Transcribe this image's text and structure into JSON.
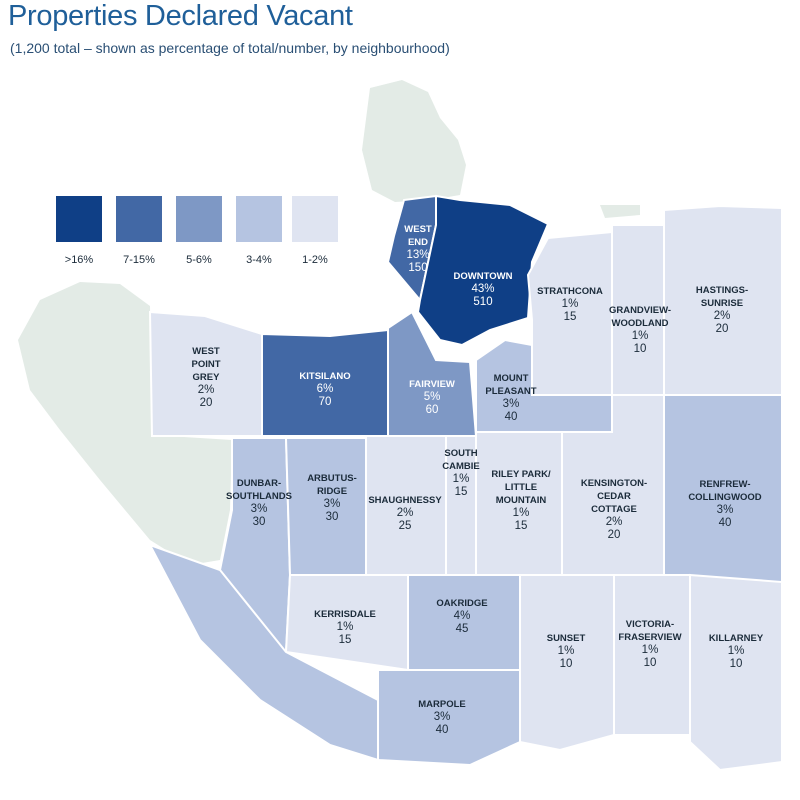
{
  "title": "Properties Declared Vacant",
  "subtitle": "(1,200 total – shown as percentage of total/number, by neighbourhood)",
  "colors": {
    "land": "#e3ebe6",
    "water": "#ffffff",
    "border": "#ffffff",
    "bin_16_plus": "#0f3f86",
    "bin_7_15": "#4268a5",
    "bin_5_6": "#7e98c5",
    "bin_3_4": "#b5c4e1",
    "bin_1_2": "#dfe4f1"
  },
  "legend": [
    {
      "label": ">16%",
      "color": "#0f3f86"
    },
    {
      "label": "7-15%",
      "color": "#4268a5"
    },
    {
      "label": "5-6%",
      "color": "#7e98c5"
    },
    {
      "label": "3-4%",
      "color": "#b5c4e1"
    },
    {
      "label": "1-2%",
      "color": "#dfe4f1"
    }
  ],
  "neighbourhoods": [
    {
      "name": "WEST\nEND",
      "pct": "13%",
      "count": "150"
    },
    {
      "name": "DOWNTOWN",
      "pct": "43%",
      "count": "510"
    },
    {
      "name": "STRATHCONA",
      "pct": "1%",
      "count": "15"
    },
    {
      "name": "GRANDVIEW-\nWOODLAND",
      "pct": "1%",
      "count": "10"
    },
    {
      "name": "HASTINGS-\nSUNRISE",
      "pct": "2%",
      "count": "20"
    },
    {
      "name": "WEST\nPOINT\nGREY",
      "pct": "2%",
      "count": "20"
    },
    {
      "name": "KITSILANO",
      "pct": "6%",
      "count": "70"
    },
    {
      "name": "FAIRVIEW",
      "pct": "5%",
      "count": "60"
    },
    {
      "name": "MOUNT\nPLEASANT",
      "pct": "3%",
      "count": "40"
    },
    {
      "name": "SOUTH\nCAMBIE",
      "pct": "1%",
      "count": "15"
    },
    {
      "name": "DUNBAR-\nSOUTHLANDS",
      "pct": "3%",
      "count": "30"
    },
    {
      "name": "ARBUTUS-\nRIDGE",
      "pct": "3%",
      "count": "30"
    },
    {
      "name": "SHAUGHNESSY",
      "pct": "2%",
      "count": "25"
    },
    {
      "name": "RILEY PARK/\nLITTLE\nMOUNTAIN",
      "pct": "1%",
      "count": "15"
    },
    {
      "name": "KENSINGTON-\nCEDAR\nCOTTAGE",
      "pct": "2%",
      "count": "20"
    },
    {
      "name": "RENFREW-\nCOLLINGWOOD",
      "pct": "3%",
      "count": "40"
    },
    {
      "name": "KERRISDALE",
      "pct": "1%",
      "count": "15"
    },
    {
      "name": "OAKRIDGE",
      "pct": "4%",
      "count": "45"
    },
    {
      "name": "SUNSET",
      "pct": "1%",
      "count": "10"
    },
    {
      "name": "VICTORIA-\nFRASERVIEW",
      "pct": "1%",
      "count": "10"
    },
    {
      "name": "KILLARNEY",
      "pct": "1%",
      "count": "10"
    },
    {
      "name": "MARPOLE",
      "pct": "3%",
      "count": "40"
    }
  ]
}
